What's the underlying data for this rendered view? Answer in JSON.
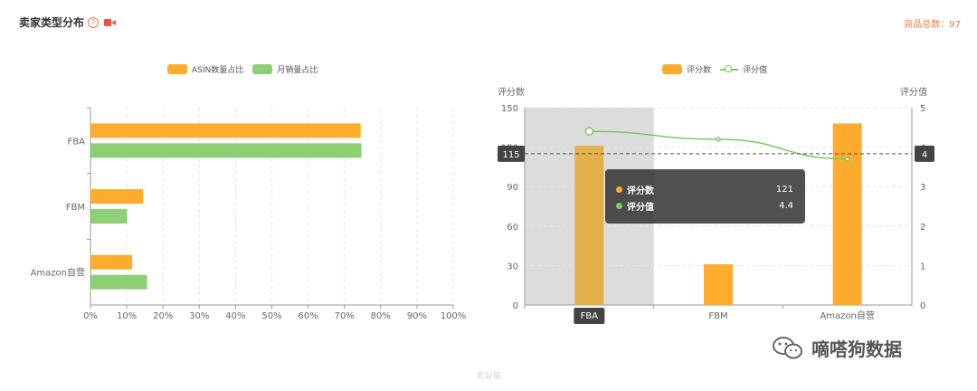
{
  "header": {
    "title": "卖家类型分布",
    "total_label": "商品总数：97"
  },
  "icons": {
    "help": "question-circle-icon",
    "video": "video-camera-icon",
    "watermark": "wechat-icon"
  },
  "colors": {
    "orange": "#ffab2e",
    "green": "#8ccf75",
    "line": "#7bc865",
    "accent": "#f07c3e"
  },
  "chart_data": [
    {
      "type": "bar",
      "orientation": "horizontal",
      "categories": [
        "FBA",
        "FBM",
        "Amazon自营"
      ],
      "series": [
        {
          "name": "ASIN数量占比",
          "values": [
            74.5,
            14.5,
            11.5
          ]
        },
        {
          "name": "月销量占比",
          "values": [
            74.7,
            10.1,
            15.6
          ]
        }
      ],
      "xlim": [
        0,
        100
      ],
      "x_ticks": [
        "0%",
        "10%",
        "20%",
        "30%",
        "40%",
        "50%",
        "60%",
        "70%",
        "80%",
        "90%",
        "100%"
      ],
      "grid": true,
      "legend": "top-center"
    },
    {
      "type": "bar",
      "categories": [
        "FBA",
        "FBM",
        "Amazon自营"
      ],
      "series": [
        {
          "name": "评分数",
          "values": [
            121,
            31,
            138
          ],
          "axis": "left"
        },
        {
          "name": "评分值",
          "type": "line",
          "values": [
            4.4,
            4.2,
            3.7
          ],
          "axis": "right"
        }
      ],
      "ylabel": "评分数",
      "ylabel_right": "评分值",
      "ylim": [
        0,
        150
      ],
      "ylim_right": [
        0,
        5
      ],
      "y_ticks": [
        "0",
        "30",
        "60",
        "90",
        "120",
        "150"
      ],
      "y_ticks_right": [
        "0",
        "1",
        "2",
        "3",
        "4",
        "5"
      ],
      "legend": "top-center",
      "crosshair": {
        "left_value": "115",
        "right_value": "4",
        "highlight_category": "FBA"
      },
      "tooltip": {
        "rows": [
          {
            "label": "评分数",
            "value": "121"
          },
          {
            "label": "评分值",
            "value": "4.4"
          }
        ]
      }
    }
  ],
  "watermark_text": "嘀嗒狗数据",
  "footer_text": "老鼠猫"
}
